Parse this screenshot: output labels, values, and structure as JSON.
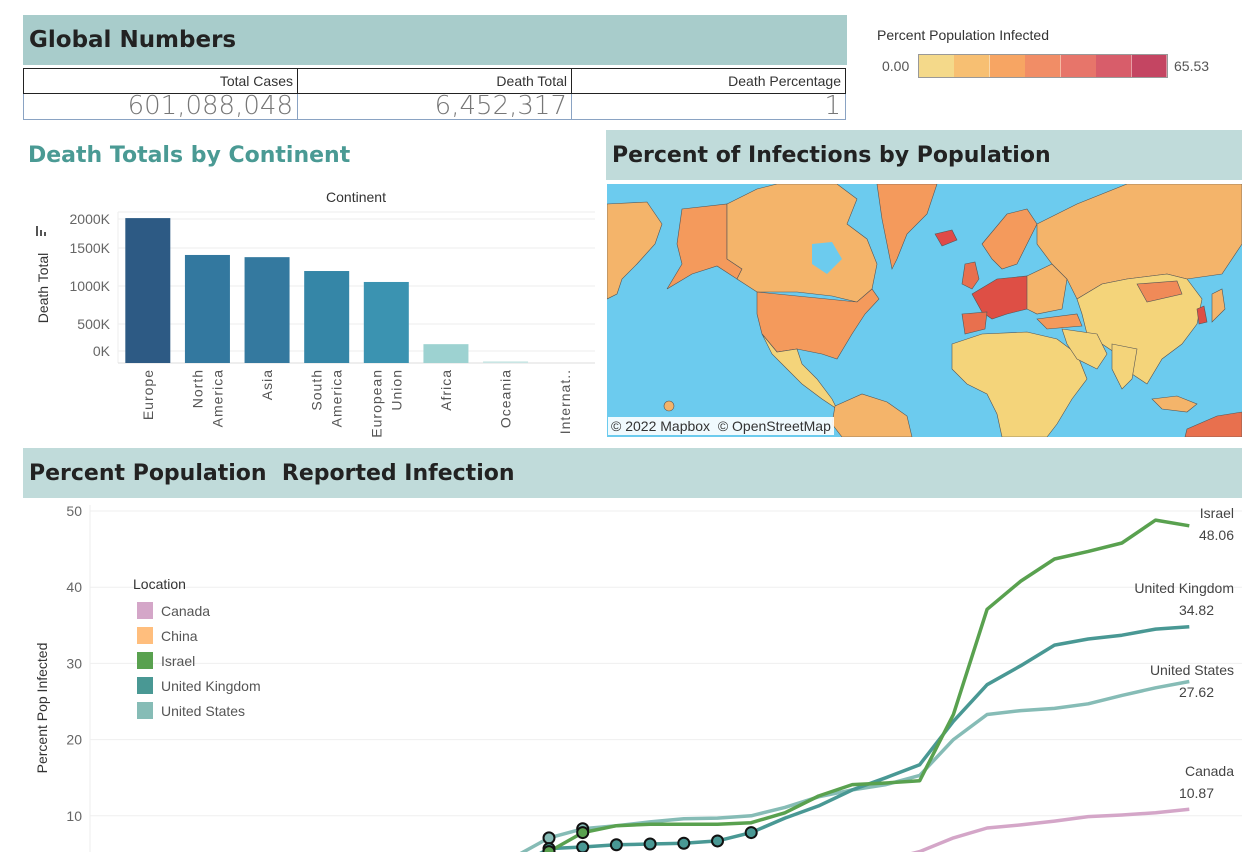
{
  "global_numbers": {
    "title": "Global Numbers",
    "columns": [
      {
        "header": "Total Cases",
        "value": "601,088,048"
      },
      {
        "header": "Death Total",
        "value": "6,452,317"
      },
      {
        "header": "Death Percentage",
        "value": "1"
      }
    ]
  },
  "color_legend": {
    "title": "Percent Population Infected",
    "min_label": "0.00",
    "max_label": "65.53",
    "colors": [
      "#f4d98a",
      "#f7bf72",
      "#f7a563",
      "#f18d66",
      "#e7756a",
      "#d85d6a",
      "#c44562"
    ]
  },
  "death_chart": {
    "title": "Death Totals by Continent",
    "icon": "bar-chart-icon"
  },
  "map": {
    "title": "Percent of Infections by Population",
    "attribution": "© 2022 Mapbox  © OpenStreetMap",
    "ocean_color": "#6ccbee"
  },
  "line_panel": {
    "title": "Percent Population  Reported Infection"
  },
  "chart_data": [
    {
      "type": "bar",
      "title": "Death Totals by Continent",
      "xlabel": "Continent",
      "ylabel": "Death Total",
      "categories": [
        "Europe",
        "North America",
        "Asia",
        "South America",
        "European Union",
        "Africa",
        "Oceania",
        "Internat.."
      ],
      "category_lines": [
        [
          "Europe"
        ],
        [
          "North",
          "America"
        ],
        [
          "Asia"
        ],
        [
          "South",
          "America"
        ],
        [
          "European",
          "Union"
        ],
        [
          "Africa"
        ],
        [
          "Oceania"
        ],
        [
          "Internat.."
        ]
      ],
      "values": [
        1985000,
        1480000,
        1450000,
        1260000,
        1110000,
        258000,
        22000,
        0
      ],
      "colors": [
        "#2d5a84",
        "#33789f",
        "#34799f",
        "#3586a7",
        "#3b93b1",
        "#9dd2d1",
        "#c9e5e4",
        "#d9eeee"
      ],
      "yticks": [
        {
          "label": "2000K",
          "value": 2000000
        },
        {
          "label": "1500K",
          "value": 1500000
        },
        {
          "label": "1000K",
          "value": 1000000
        },
        {
          "label": "500K",
          "value": 500000
        },
        {
          "label": "0K",
          "value": 0
        }
      ],
      "ylim": [
        0,
        2000000
      ],
      "grid": true
    },
    {
      "type": "line",
      "title": "Percent Population  Reported Infection",
      "ylabel": "Percent Pop Infected",
      "ylim": [
        0,
        50
      ],
      "yticks": [
        10,
        20,
        30,
        40,
        50
      ],
      "legend": {
        "title": "Location",
        "placement": "top-left"
      },
      "x_index": [
        0,
        1,
        2,
        3,
        4,
        5,
        6,
        7,
        8,
        9,
        10,
        11,
        12,
        13,
        14,
        15,
        16,
        17,
        18,
        19
      ],
      "series": [
        {
          "name": "Canada",
          "color": "#d4a6c8",
          "end_label": "10.87",
          "values": [
            null,
            null,
            null,
            null,
            null,
            null,
            null,
            null,
            null,
            null,
            4.2,
            5.3,
            7.1,
            8.4,
            8.8,
            9.3,
            9.9,
            10.1,
            10.4,
            10.87
          ]
        },
        {
          "name": "China",
          "color": "#ffbe7d",
          "end_label": null,
          "values": []
        },
        {
          "name": "Israel",
          "color": "#59a14f",
          "end_label": "48.06",
          "values": [
            5.3,
            7.8,
            8.7,
            8.9,
            8.9,
            8.9,
            9.1,
            10.4,
            12.6,
            14.1,
            14.3,
            14.6,
            23.3,
            37.1,
            40.8,
            43.7,
            44.7,
            45.8,
            48.8,
            48.06
          ]
        },
        {
          "name": "United Kingdom",
          "color": "#499894",
          "end_label": "34.82",
          "values": [
            5.7,
            5.9,
            6.2,
            6.3,
            6.4,
            6.7,
            7.8,
            9.7,
            11.3,
            13.4,
            15.0,
            16.7,
            22.4,
            27.2,
            29.7,
            32.4,
            33.2,
            33.7,
            34.5,
            34.82
          ]
        },
        {
          "name": "United States",
          "color": "#86bcb6",
          "end_label": "27.62",
          "values": [
            7.1,
            8.3,
            8.7,
            9.2,
            9.6,
            9.7,
            10.0,
            11.1,
            12.5,
            13.4,
            14.1,
            15.3,
            20.0,
            23.3,
            23.8,
            24.1,
            24.7,
            25.8,
            26.8,
            27.62
          ]
        }
      ],
      "highlighted_points": {
        "series": [
          "United Kingdom",
          "Israel",
          "United States"
        ],
        "indices_uk": [
          0,
          1,
          2,
          3,
          4,
          5,
          6
        ],
        "indices_israel": [
          0,
          1
        ],
        "indices_us": [
          0,
          1
        ]
      },
      "grid": true
    }
  ]
}
